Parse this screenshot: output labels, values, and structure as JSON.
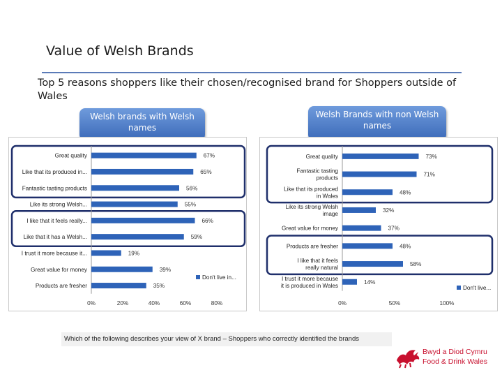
{
  "title": "Value of Welsh Brands",
  "subtitle": "Top 5 reasons shoppers like their chosen/recognised brand for Shoppers outside of Wales",
  "left_pill": "Welsh brands with Welsh names",
  "right_pill": "Welsh Brands with non Welsh names",
  "footnote": "Which of the following describes your view of X brand – Shoppers who correctly identified the brands",
  "logo": {
    "line1": "Bwyd a Diod Cymru",
    "line2": "Food & Drink Wales"
  },
  "colors": {
    "bar": "#2e63b8",
    "highlight_box": "#1f2f6b",
    "pill": "#3b69b8",
    "logo": "#c8102e"
  },
  "chart_data": [
    {
      "type": "bar",
      "orientation": "horizontal",
      "categories": [
        "Great quality",
        "Like that its  produced  in...",
        "Fantastic tasting products",
        "Like its strong Welsh...",
        "I like that it feels really...",
        "Like that it has a Welsh...",
        "I trust it more because it...",
        "Great value for money",
        "Products are fresher"
      ],
      "series": [
        {
          "name": "Don't live in...",
          "values": [
            67,
            65,
            56,
            55,
            66,
            59,
            19,
            39,
            35
          ]
        }
      ],
      "data_labels": [
        "67%",
        "65%",
        "56%",
        "55%",
        "66%",
        "59%",
        "19%",
        "39%",
        "35%"
      ],
      "xlim": [
        0,
        80
      ],
      "xticks": [
        "0%",
        "20%",
        "40%",
        "60%",
        "80%"
      ],
      "legend": "right",
      "grid": false,
      "highlight_groups": [
        [
          0,
          2
        ],
        [
          4,
          5
        ]
      ]
    },
    {
      "type": "bar",
      "orientation": "horizontal",
      "categories": [
        "Great quality",
        "Fantastic tasting products",
        "Like that its  produced  in Wales",
        "Like its strong Welsh image",
        "Great value for money",
        "Products are fresher",
        "I like that it feels really natural",
        "I trust it more because it is produced in Wales"
      ],
      "series": [
        {
          "name": "Don't live...",
          "values": [
            73,
            71,
            48,
            32,
            37,
            48,
            58,
            14
          ]
        }
      ],
      "data_labels": [
        "73%",
        "71%",
        "48%",
        "32%",
        "37%",
        "48%",
        "58%",
        "14%"
      ],
      "xlim": [
        0,
        100
      ],
      "xticks": [
        "0%",
        "50%",
        "100%"
      ],
      "legend": "right",
      "grid": false,
      "highlight_groups": [
        [
          0,
          2
        ],
        [
          5,
          6
        ]
      ]
    }
  ]
}
